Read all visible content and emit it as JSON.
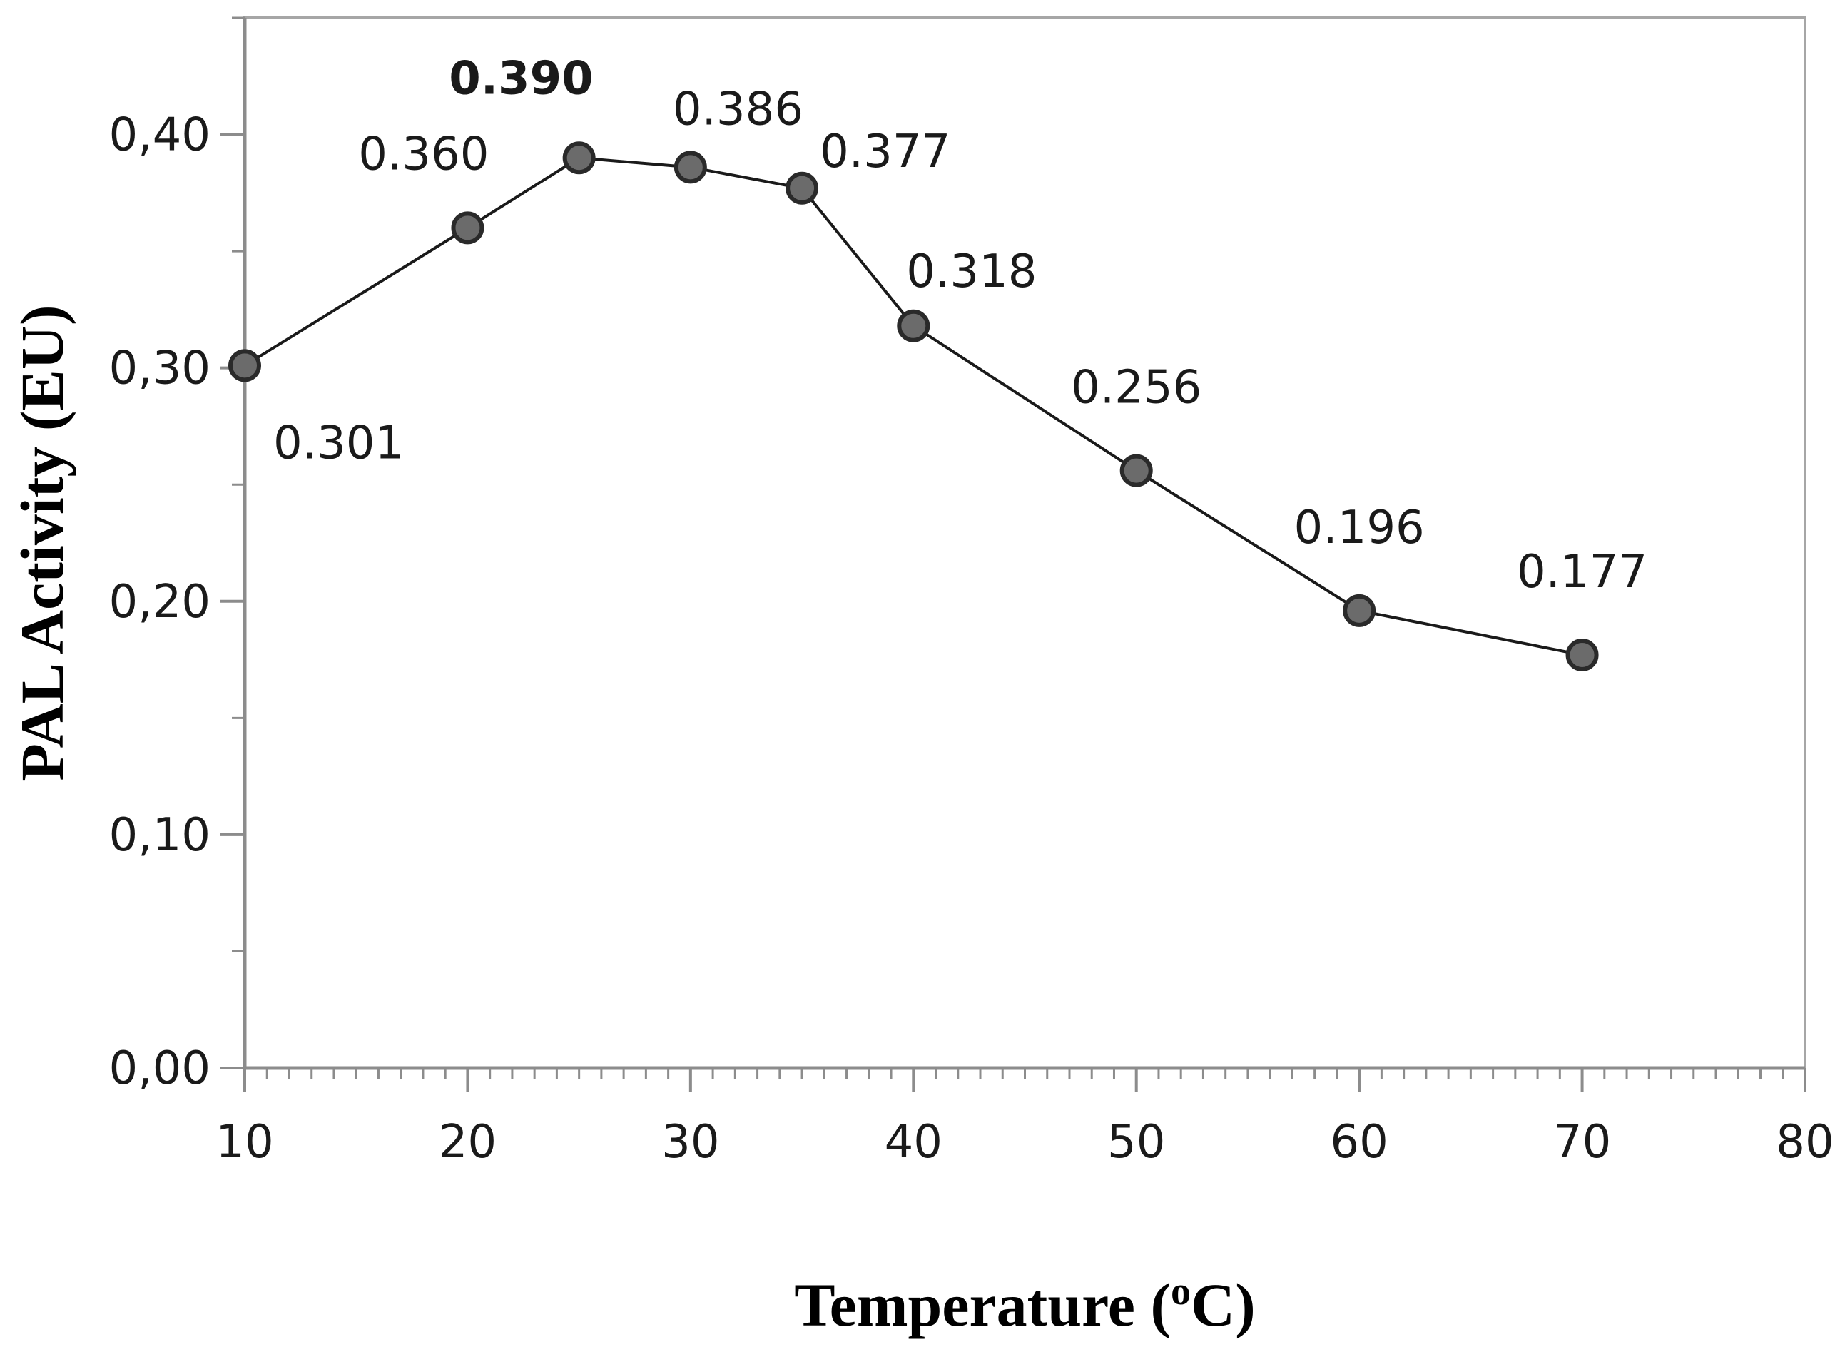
{
  "chart_data": {
    "type": "line",
    "title": "",
    "xlabel": "Temperature (",
    "xlabel_superscript": "o",
    "xlabel_unit": "C)",
    "ylabel": "PAL Activity (EU)",
    "xlim": [
      10,
      80
    ],
    "ylim": [
      0.0,
      0.45
    ],
    "x_ticks": [
      10,
      20,
      30,
      40,
      50,
      60,
      70,
      80
    ],
    "x_tick_labels": [
      "10",
      "20",
      "30",
      "40",
      "50",
      "60",
      "70",
      "80"
    ],
    "x_minor_step": 1,
    "y_ticks": [
      0.0,
      0.1,
      0.2,
      0.3,
      0.4
    ],
    "y_tick_labels": [
      "0,00",
      "0,10",
      "0,20",
      "0,30",
      "0,40"
    ],
    "y_minor_step": 0.05,
    "grid": false,
    "series": [
      {
        "name": "PAL Activity",
        "x": [
          10,
          20,
          25,
          30,
          35,
          40,
          50,
          60,
          70
        ],
        "y": [
          0.301,
          0.36,
          0.39,
          0.386,
          0.377,
          0.318,
          0.256,
          0.196,
          0.177
        ],
        "labels": [
          "0.301",
          "0.360",
          "0.390",
          "0.386",
          "0.377",
          "0.318",
          "0.256",
          "0.196",
          "0.177"
        ],
        "label_bold": [
          false,
          false,
          true,
          false,
          false,
          false,
          false,
          false,
          false
        ]
      }
    ],
    "colors": {
      "line": "#1a1a1a",
      "marker_fill": "#6b6b6b",
      "marker_stroke": "#2a2a2a",
      "frame": "#a6a6a6",
      "axis": "#8c8c8c"
    }
  }
}
